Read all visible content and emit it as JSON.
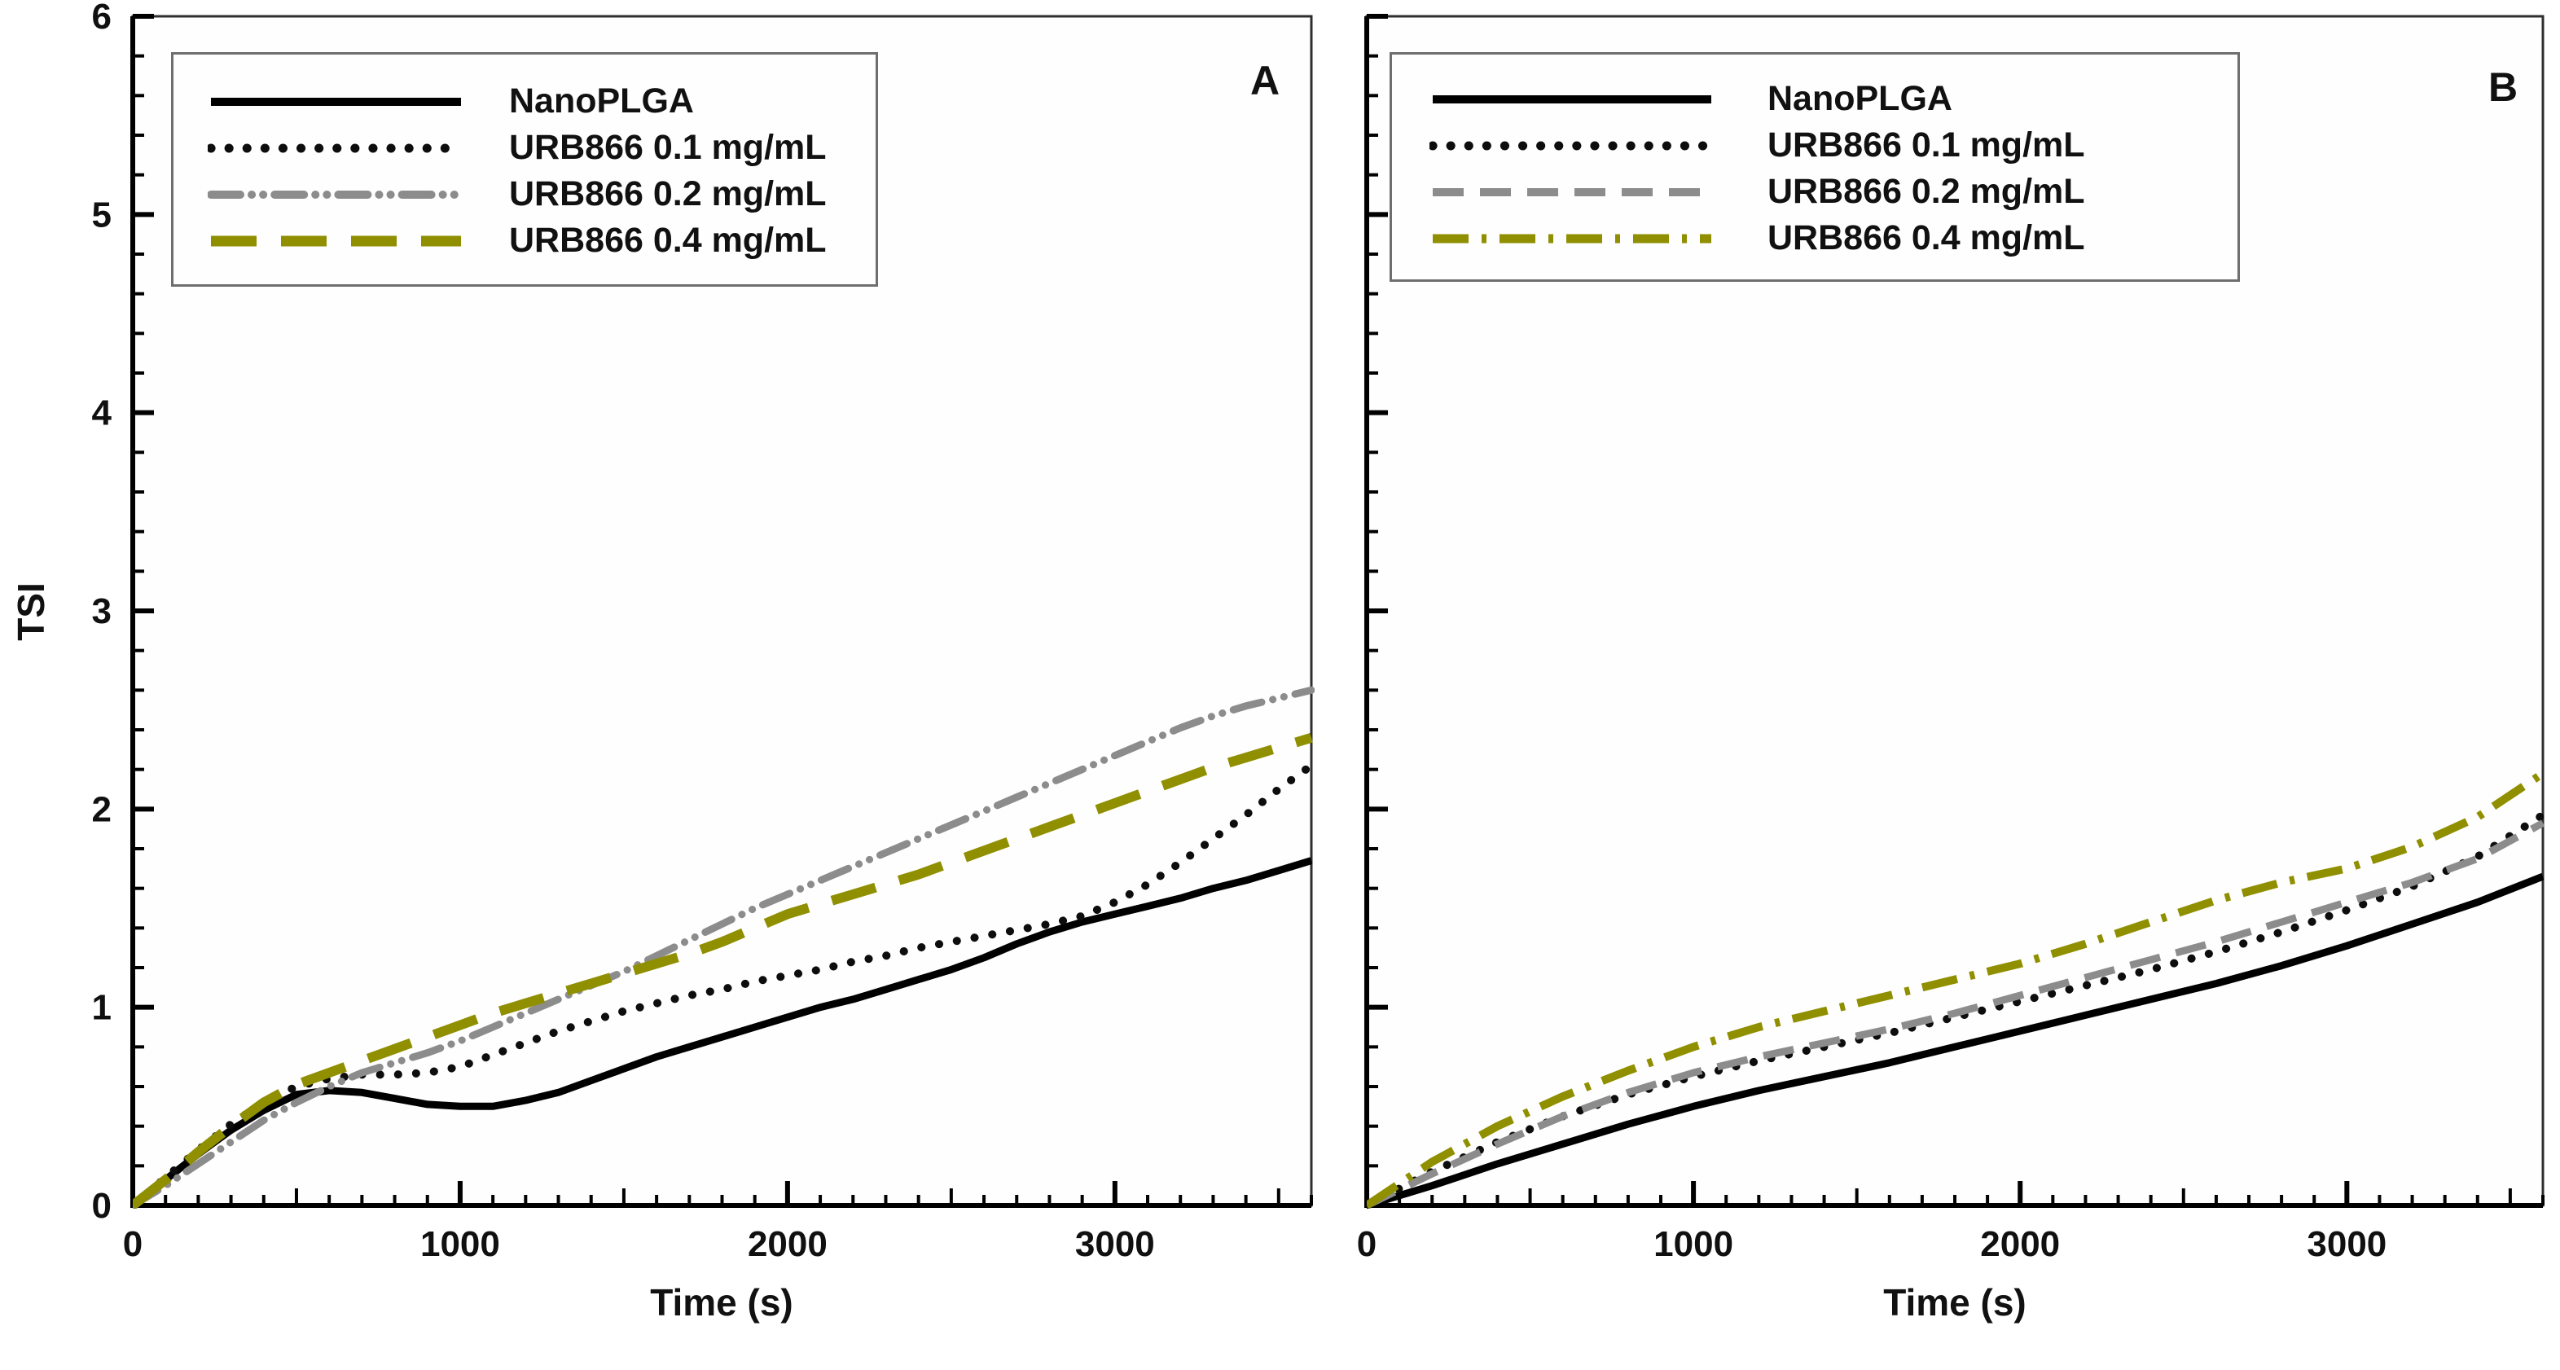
{
  "figure": {
    "y_axis_label": "TSI",
    "x_axis_label": "Time (s)",
    "background_color": "#ffffff",
    "axis_color": "#000000",
    "tick_label_color": "#101010"
  },
  "chart_data": [
    {
      "type": "line",
      "panel_label": "A",
      "xlabel": "Time (s)",
      "ylabel": "TSI",
      "xlim": [
        0,
        3600
      ],
      "ylim": [
        0,
        6
      ],
      "x_major_ticks": [
        0,
        1000,
        2000,
        3000
      ],
      "x_mid_tick_step": 500,
      "x_minor_tick_step": 100,
      "y_major_ticks": [
        0,
        1,
        2,
        3,
        4,
        5,
        6
      ],
      "y_minor_tick_step": 0.2,
      "show_y_tick_labels": true,
      "legend_position": "top-left",
      "grid": false,
      "x": [
        0,
        100,
        200,
        300,
        400,
        500,
        600,
        700,
        800,
        900,
        1000,
        1100,
        1200,
        1300,
        1400,
        1500,
        1600,
        1700,
        1800,
        1900,
        2000,
        2100,
        2200,
        2300,
        2400,
        2500,
        2600,
        2700,
        2800,
        2900,
        3000,
        3100,
        3200,
        3300,
        3400,
        3500,
        3600
      ],
      "series": [
        {
          "name": "NanoPLGA",
          "color": "#000000",
          "style": "solid",
          "values": [
            0,
            0.13,
            0.26,
            0.38,
            0.48,
            0.56,
            0.58,
            0.57,
            0.54,
            0.51,
            0.5,
            0.5,
            0.53,
            0.57,
            0.63,
            0.69,
            0.75,
            0.8,
            0.85,
            0.9,
            0.95,
            1.0,
            1.04,
            1.09,
            1.14,
            1.19,
            1.25,
            1.32,
            1.38,
            1.43,
            1.47,
            1.51,
            1.55,
            1.6,
            1.64,
            1.69,
            1.74
          ]
        },
        {
          "name": "URB866 0.1 mg/mL",
          "color": "#0d0d0d",
          "style": "dotted",
          "values": [
            0,
            0.14,
            0.28,
            0.41,
            0.52,
            0.6,
            0.64,
            0.66,
            0.66,
            0.67,
            0.7,
            0.76,
            0.82,
            0.88,
            0.93,
            0.98,
            1.02,
            1.06,
            1.09,
            1.13,
            1.16,
            1.19,
            1.23,
            1.26,
            1.3,
            1.33,
            1.36,
            1.39,
            1.42,
            1.46,
            1.53,
            1.62,
            1.73,
            1.85,
            1.97,
            2.1,
            2.22
          ]
        },
        {
          "name": "URB866 0.2 mg/mL",
          "color": "#8c8c8c",
          "style": "dash-dot-dot",
          "values": [
            0,
            0.1,
            0.21,
            0.32,
            0.43,
            0.52,
            0.6,
            0.67,
            0.72,
            0.77,
            0.83,
            0.9,
            0.97,
            1.04,
            1.11,
            1.18,
            1.26,
            1.34,
            1.42,
            1.5,
            1.57,
            1.64,
            1.71,
            1.78,
            1.85,
            1.92,
            1.99,
            2.06,
            2.13,
            2.2,
            2.27,
            2.34,
            2.41,
            2.47,
            2.52,
            2.56,
            2.6
          ]
        },
        {
          "name": "URB866 0.4 mg/mL",
          "color": "#8f8f00",
          "style": "long-dash",
          "values": [
            0,
            0.13,
            0.27,
            0.4,
            0.52,
            0.61,
            0.67,
            0.73,
            0.79,
            0.85,
            0.91,
            0.97,
            1.02,
            1.07,
            1.12,
            1.17,
            1.22,
            1.27,
            1.33,
            1.4,
            1.47,
            1.52,
            1.57,
            1.62,
            1.67,
            1.73,
            1.79,
            1.85,
            1.91,
            1.97,
            2.03,
            2.09,
            2.15,
            2.21,
            2.26,
            2.31,
            2.36
          ]
        }
      ]
    },
    {
      "type": "line",
      "panel_label": "B",
      "xlabel": "Time (s)",
      "ylabel": "",
      "xlim": [
        0,
        3600
      ],
      "ylim": [
        0,
        6
      ],
      "x_major_ticks": [
        0,
        1000,
        2000,
        3000
      ],
      "x_mid_tick_step": 500,
      "x_minor_tick_step": 100,
      "y_major_ticks": [
        0,
        1,
        2,
        3,
        4,
        5,
        6
      ],
      "y_minor_tick_step": 0.2,
      "show_y_tick_labels": false,
      "legend_position": "top-left",
      "grid": false,
      "x": [
        0,
        200,
        400,
        600,
        800,
        1000,
        1200,
        1400,
        1600,
        1800,
        2000,
        2200,
        2400,
        2600,
        2800,
        3000,
        3200,
        3400,
        3600
      ],
      "series": [
        {
          "name": "NanoPLGA",
          "color": "#000000",
          "style": "solid",
          "values": [
            0,
            0.1,
            0.21,
            0.31,
            0.41,
            0.5,
            0.58,
            0.65,
            0.72,
            0.8,
            0.88,
            0.96,
            1.04,
            1.12,
            1.21,
            1.31,
            1.42,
            1.53,
            1.66
          ]
        },
        {
          "name": "URB866 0.1 mg/mL",
          "color": "#0d0d0d",
          "style": "dotted",
          "values": [
            0,
            0.17,
            0.32,
            0.45,
            0.56,
            0.65,
            0.73,
            0.8,
            0.87,
            0.95,
            1.03,
            1.11,
            1.19,
            1.28,
            1.38,
            1.49,
            1.61,
            1.76,
            1.97
          ]
        },
        {
          "name": "URB866 0.2 mg/mL",
          "color": "#8c8c8c",
          "style": "dashed",
          "values": [
            0,
            0.16,
            0.31,
            0.45,
            0.57,
            0.67,
            0.75,
            0.82,
            0.89,
            0.97,
            1.06,
            1.15,
            1.24,
            1.33,
            1.43,
            1.53,
            1.63,
            1.75,
            1.93
          ]
        },
        {
          "name": "URB866 0.4 mg/mL",
          "color": "#8f8f00",
          "style": "dash-dot",
          "values": [
            0,
            0.22,
            0.4,
            0.55,
            0.68,
            0.8,
            0.9,
            0.98,
            1.06,
            1.14,
            1.22,
            1.32,
            1.43,
            1.54,
            1.63,
            1.7,
            1.81,
            1.96,
            2.18
          ]
        }
      ]
    }
  ]
}
